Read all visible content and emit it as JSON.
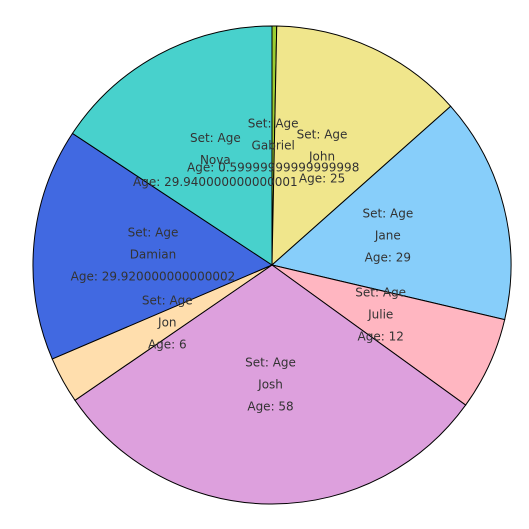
{
  "chart_data": {
    "type": "pie",
    "start_angle_deg": -90,
    "direction": "clockwise",
    "slices": [
      {
        "name": "Gabriel",
        "value": 0.6,
        "color": "#9acd32",
        "lines": [
          "Set: Age",
          "Gabriel",
          "Age: 0.59999999999999998"
        ]
      },
      {
        "name": "John",
        "value": 25,
        "color": "#f0e68c",
        "lines": [
          "Set: Age",
          "John",
          "Age: 25"
        ]
      },
      {
        "name": "Jane",
        "value": 29,
        "color": "#87cefa",
        "lines": [
          "Set: Age",
          "Jane",
          "Age: 29"
        ]
      },
      {
        "name": "Julie",
        "value": 12,
        "color": "#ffb6c1",
        "lines": [
          "Set: Age",
          "Julie",
          "Age: 12"
        ]
      },
      {
        "name": "Josh",
        "value": 58,
        "color": "#dda0dd",
        "lines": [
          "Set: Age",
          "Josh",
          "Age: 58"
        ]
      },
      {
        "name": "Jon",
        "value": 6,
        "color": "#ffdead",
        "lines": [
          "Set: Age",
          "Jon",
          "Age: 6"
        ]
      },
      {
        "name": "Damian",
        "value": 29.92,
        "color": "#4169e1",
        "lines": [
          "Set: Age",
          "Damian",
          "Age: 29.920000000000002"
        ]
      },
      {
        "name": "Nova",
        "value": 29.94,
        "color": "#48d1cc",
        "lines": [
          "Set: Age",
          "Nova",
          "Age: 29.940000000000001"
        ]
      }
    ]
  }
}
